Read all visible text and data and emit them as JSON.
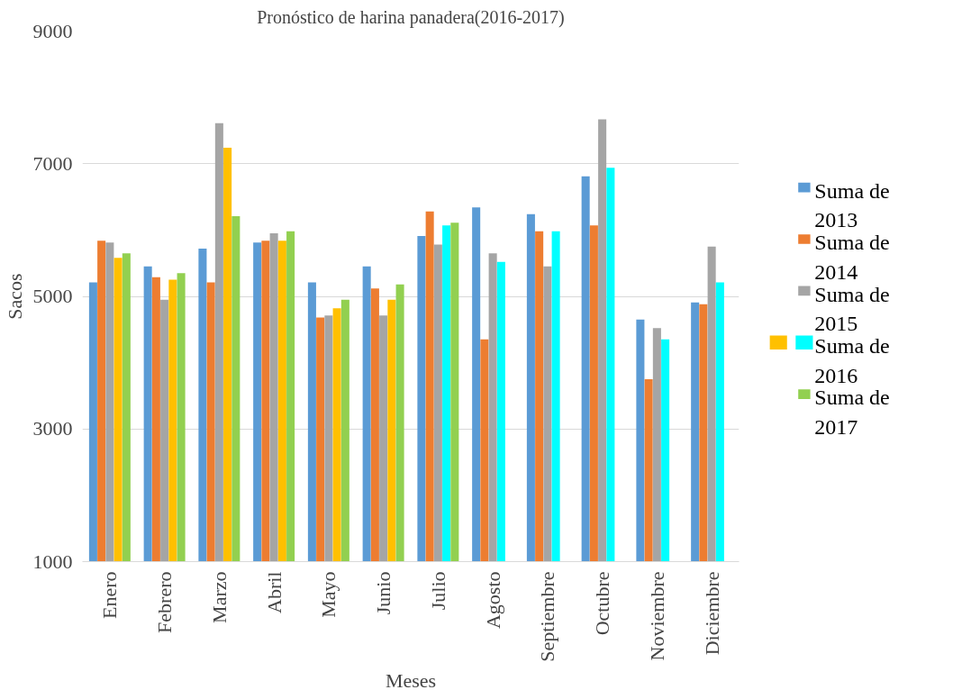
{
  "chart_data": {
    "type": "bar",
    "title": "Pronóstico de harina panadera(2016-2017)",
    "xlabel": "Meses",
    "ylabel": "Sacos",
    "categories": [
      "Enero",
      "Febrero",
      "Marzo",
      "Abril",
      "Mayo",
      "Junio",
      "Julio",
      "Agosto",
      "Septiembre",
      "Octubre",
      "Noviembre",
      "Diciembre"
    ],
    "series": [
      {
        "name": "Suma de 2013",
        "color": "#5b9bd5",
        "values": [
          5210,
          5450,
          5720,
          5810,
          5210,
          5450,
          5910,
          6340,
          6240,
          6810,
          4650,
          4910
        ]
      },
      {
        "name": "Suma de 2014",
        "color": "#ed7d31",
        "values": [
          5840,
          5290,
          5210,
          5840,
          4680,
          5120,
          6280,
          4350,
          5980,
          6070,
          3750,
          4880
        ]
      },
      {
        "name": "Suma de 2015",
        "color": "#a5a5a5",
        "values": [
          5810,
          4950,
          7610,
          5950,
          4710,
          4710,
          5780,
          5650,
          5450,
          7670,
          4520,
          5750
        ]
      },
      {
        "name": "Suma de 2016",
        "colors": [
          "#ffc000",
          "#ffc000",
          "#ffc000",
          "#ffc000",
          "#ffc000",
          "#ffc000",
          "#00ffff",
          "#00ffff",
          "#00ffff",
          "#00ffff",
          "#00ffff",
          "#00ffff"
        ],
        "values": [
          5580,
          5250,
          7240,
          5840,
          4820,
          4950,
          6070,
          5520,
          5980,
          6940,
          4350,
          5210
        ]
      },
      {
        "name": "Suma de 2017",
        "color": "#92d050",
        "values": [
          5650,
          5350,
          6210,
          5980,
          4950,
          5180,
          6110,
          null,
          null,
          null,
          null,
          null
        ]
      }
    ],
    "ylim": [
      1000,
      9000
    ],
    "yticks": [
      1000,
      3000,
      5000,
      7000,
      9000
    ],
    "grid": "y",
    "legend": "right"
  }
}
